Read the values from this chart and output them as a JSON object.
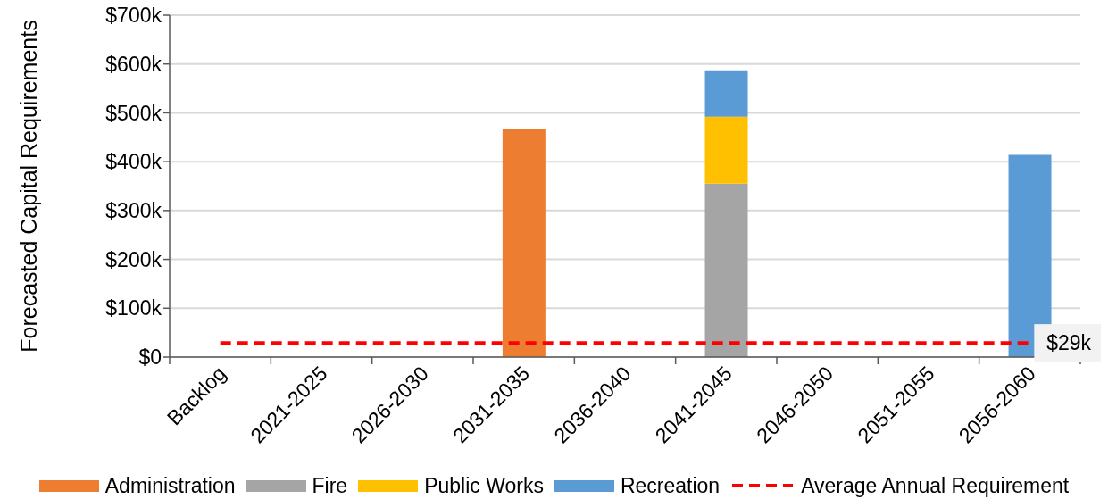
{
  "chart_data": {
    "type": "bar",
    "stacked": true,
    "ylabel": "Forecasted Capital Requirements",
    "categories": [
      "Backlog",
      "2021-2025",
      "2026-2030",
      "2031-2035",
      "2036-2040",
      "2041-2045",
      "2046-2050",
      "2051-2055",
      "2056-2060"
    ],
    "series": [
      {
        "name": "Administration",
        "color": "#ed7d31",
        "values": [
          null,
          null,
          null,
          468,
          null,
          null,
          null,
          null,
          null
        ]
      },
      {
        "name": "Fire",
        "color": "#a5a5a5",
        "values": [
          null,
          null,
          null,
          null,
          null,
          355,
          null,
          null,
          null
        ]
      },
      {
        "name": "Public Works",
        "color": "#ffc000",
        "values": [
          null,
          null,
          null,
          null,
          null,
          137,
          null,
          null,
          null
        ]
      },
      {
        "name": "Recreation",
        "color": "#5b9bd5",
        "values": [
          null,
          null,
          null,
          null,
          null,
          95,
          null,
          null,
          414
        ]
      },
      {
        "name": "Average Annual Requirement",
        "type": "line",
        "color": "#ff0000",
        "line_style": "dashed",
        "marker": "none",
        "values": [
          29,
          29,
          29,
          29,
          29,
          29,
          29,
          29,
          29
        ],
        "value_labels": [
          null,
          null,
          null,
          null,
          null,
          null,
          null,
          null,
          "$29k"
        ]
      }
    ],
    "ylim": [
      0,
      700
    ],
    "yticks": [
      {
        "value": 0,
        "label": "$0"
      },
      {
        "value": 100,
        "label": "$100k"
      },
      {
        "value": 200,
        "label": "$200k"
      },
      {
        "value": 300,
        "label": "$300k"
      },
      {
        "value": 400,
        "label": "$400k"
      },
      {
        "value": 500,
        "label": "$500k"
      },
      {
        "value": 600,
        "label": "$600k"
      },
      {
        "value": 700,
        "label": "$700k"
      }
    ],
    "grid": "y",
    "legend": "bottom"
  }
}
